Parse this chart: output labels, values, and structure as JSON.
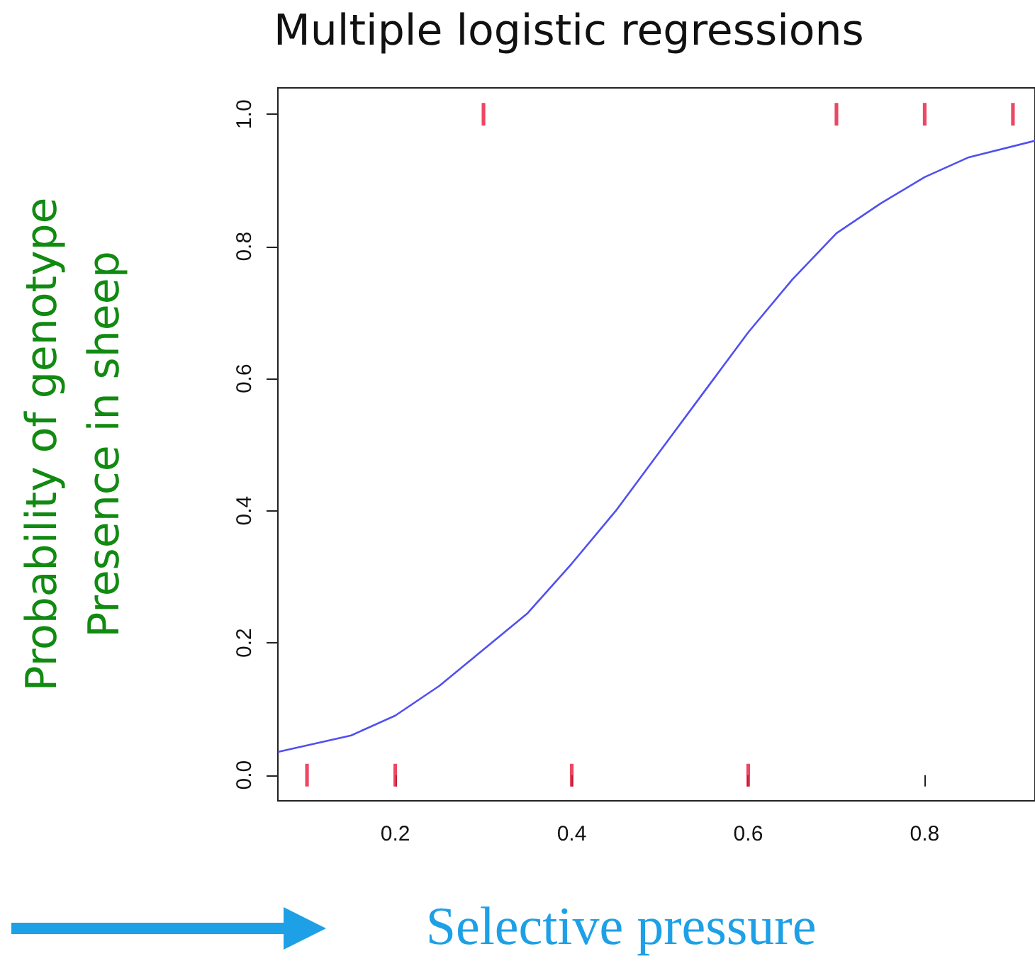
{
  "chart_data": {
    "type": "line",
    "title": "Multiple logistic regressions",
    "xlabel": "Selective pressure",
    "ylabel": "Probability of genotype\nPresence in sheep",
    "xlim": [
      0.067,
      0.925
    ],
    "xticks": [
      0.2,
      0.4,
      0.6,
      0.8
    ],
    "ylim": [
      -0.039,
      1.04
    ],
    "yticks": [
      {
        "value": 0,
        "label": "0.0"
      },
      0.2,
      0.4,
      0.6,
      0.8,
      {
        "value": 1,
        "label": "1.0"
      }
    ],
    "grid": false,
    "series": [
      {
        "type": "line",
        "color": "#5050f0",
        "x": [
          0.067,
          0.1,
          0.15,
          0.2,
          0.25,
          0.3,
          0.35,
          0.4,
          0.45,
          0.5,
          0.55,
          0.6,
          0.65,
          0.7,
          0.75,
          0.8,
          0.85,
          0.925
        ],
        "values": [
          0.035,
          0.045,
          0.06,
          0.09,
          0.135,
          0.19,
          0.245,
          0.32,
          0.4,
          0.49,
          0.58,
          0.67,
          0.75,
          0.82,
          0.865,
          0.905,
          0.935,
          0.96
        ]
      },
      {
        "type": "scatter",
        "color": "#e8193c",
        "x": [
          0.1,
          0.2,
          0.3,
          0.4,
          0.6,
          0.7,
          0.8,
          0.9
        ],
        "values": [
          0,
          0,
          1,
          0,
          0,
          1,
          1,
          1
        ]
      }
    ]
  }
}
